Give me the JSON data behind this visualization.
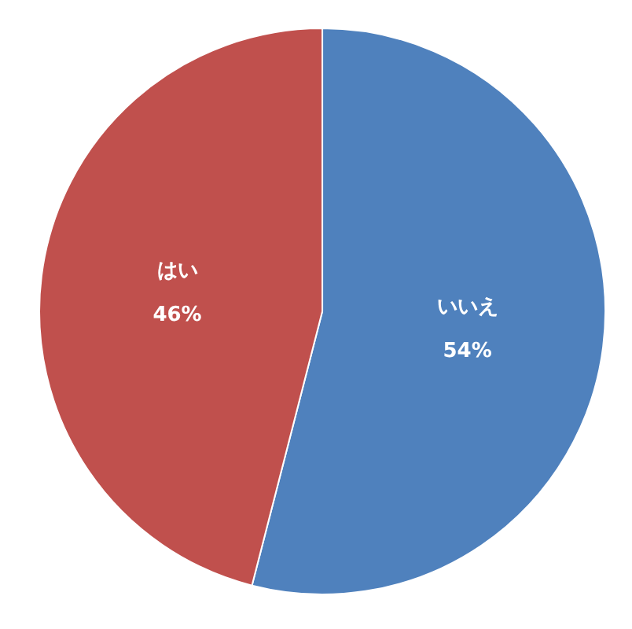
{
  "chart_data": {
    "type": "pie",
    "categories": [
      "いいえ",
      "はい"
    ],
    "values": [
      54,
      46
    ],
    "value_labels": [
      "54%",
      "46%"
    ],
    "colors": [
      "#4f81bd",
      "#c0504d"
    ],
    "legend": false
  }
}
